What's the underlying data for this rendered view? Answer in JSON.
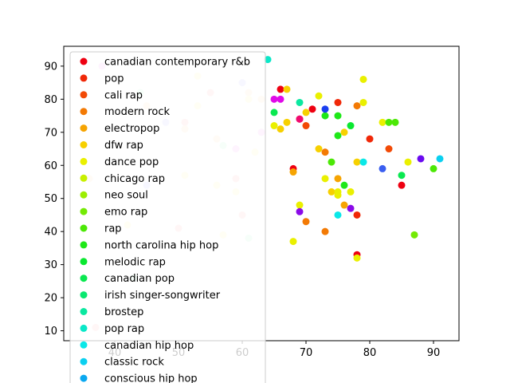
{
  "chart_data": {
    "type": "scatter",
    "title": "",
    "xlabel": "",
    "ylabel": "",
    "xlim": [
      32,
      94
    ],
    "ylim": [
      7,
      96
    ],
    "xticks": [
      40,
      50,
      60,
      70,
      80,
      90
    ],
    "yticks": [
      10,
      20,
      30,
      40,
      50,
      60,
      70,
      80,
      90
    ],
    "grid": false,
    "legend_position": "left, partially covering plot",
    "series": [
      {
        "name": "canadian contemporary r&b",
        "color": "#ee0011",
        "points": [
          [
            66,
            83
          ],
          [
            69,
            74
          ],
          [
            71,
            77
          ],
          [
            85,
            54
          ],
          [
            78,
            33
          ],
          [
            68,
            59
          ]
        ]
      },
      {
        "name": "pop",
        "color": "#f02808",
        "points": [
          [
            80,
            68
          ],
          [
            78,
            45
          ],
          [
            75,
            79
          ]
        ]
      },
      {
        "name": "cali rap",
        "color": "#f24a06",
        "points": [
          [
            83,
            65
          ],
          [
            70,
            72
          ]
        ]
      },
      {
        "name": "modern rock",
        "color": "#f37a04",
        "points": [
          [
            73,
            64
          ],
          [
            78,
            78
          ],
          [
            73,
            40
          ],
          [
            70,
            43
          ]
        ]
      },
      {
        "name": "electropop",
        "color": "#f6a402",
        "points": [
          [
            75,
            56
          ],
          [
            76,
            48
          ],
          [
            68,
            58
          ]
        ]
      },
      {
        "name": "dfw rap",
        "color": "#f7d000",
        "points": [
          [
            67,
            83
          ],
          [
            66,
            71
          ],
          [
            67,
            73
          ],
          [
            72,
            65
          ],
          [
            76,
            70
          ],
          [
            78,
            61
          ],
          [
            74,
            52
          ],
          [
            70,
            76
          ]
        ]
      },
      {
        "name": "dance pop",
        "color": "#eaf000",
        "points": [
          [
            79,
            86
          ],
          [
            72,
            81
          ],
          [
            79,
            79
          ],
          [
            65,
            72
          ],
          [
            82,
            73
          ],
          [
            86,
            61
          ],
          [
            75,
            51
          ],
          [
            75,
            52
          ],
          [
            77,
            52
          ],
          [
            73,
            56
          ],
          [
            69,
            48
          ],
          [
            68,
            37
          ],
          [
            78,
            32
          ]
        ]
      },
      {
        "name": "chicago rap",
        "color": "#c8f000",
        "points": []
      },
      {
        "name": "neo soul",
        "color": "#9cee02",
        "points": []
      },
      {
        "name": "emo rap",
        "color": "#74ea04",
        "points": [
          [
            87,
            39
          ]
        ]
      },
      {
        "name": "rap",
        "color": "#4ce806",
        "points": [
          [
            83,
            73
          ],
          [
            84,
            73
          ],
          [
            90,
            59
          ],
          [
            74,
            61
          ]
        ]
      },
      {
        "name": "north carolina hip hop",
        "color": "#1ee818",
        "points": [
          [
            73,
            75
          ],
          [
            75,
            75
          ],
          [
            75,
            69
          ],
          [
            76,
            54
          ]
        ]
      },
      {
        "name": "melodic rap",
        "color": "#0ae830",
        "points": [
          [
            77,
            72
          ]
        ]
      },
      {
        "name": "canadian pop",
        "color": "#0ae850",
        "points": [
          [
            65,
            76
          ],
          [
            85,
            57
          ]
        ]
      },
      {
        "name": "irish singer-songwriter",
        "color": "#0ae870",
        "points": []
      },
      {
        "name": "brostep",
        "color": "#0ae8a0",
        "points": [
          [
            69,
            79
          ]
        ]
      },
      {
        "name": "pop rap",
        "color": "#0ae8c8",
        "points": [
          [
            64,
            92
          ]
        ]
      },
      {
        "name": "canadian hip hop",
        "color": "#0ae8e8",
        "points": [
          [
            79,
            61
          ],
          [
            75,
            45
          ]
        ]
      },
      {
        "name": "classic rock",
        "color": "#0ad0f0",
        "points": [
          [
            91,
            62
          ]
        ]
      },
      {
        "name": "conscious hip hop",
        "color": "#0aa8f0",
        "points": []
      }
    ],
    "extra_points": [
      {
        "color": "#3a5ef0",
        "points": [
          [
            82,
            59
          ]
        ]
      },
      {
        "color": "#1a3ef0",
        "points": [
          [
            73,
            77
          ]
        ]
      },
      {
        "color": "#6a0af0",
        "points": [
          [
            88,
            62
          ]
        ]
      },
      {
        "color": "#8a0ae8",
        "points": [
          [
            69,
            46
          ],
          [
            77,
            47
          ]
        ]
      },
      {
        "color": "#e00ae8",
        "points": [
          [
            65,
            80
          ],
          [
            66,
            80
          ]
        ]
      },
      {
        "color": "#f00a70",
        "points": [
          [
            69,
            74
          ]
        ]
      }
    ],
    "faded_points": [
      {
        "color": "#f8c8f8",
        "points": [
          [
            38,
            90
          ],
          [
            63,
            70
          ],
          [
            59,
            65
          ]
        ]
      },
      {
        "color": "#ffd0d0",
        "points": [
          [
            55,
            82
          ],
          [
            51,
            73
          ],
          [
            59,
            56
          ],
          [
            60,
            45
          ],
          [
            50,
            41
          ],
          [
            37,
            11
          ]
        ]
      },
      {
        "color": "#ffe8d0",
        "points": [
          [
            45,
            78
          ],
          [
            61,
            82
          ],
          [
            51,
            71
          ],
          [
            63,
            80
          ],
          [
            56,
            68
          ],
          [
            36,
            56
          ]
        ]
      },
      {
        "color": "#fff8c8",
        "points": [
          [
            53,
            87
          ],
          [
            53,
            78
          ],
          [
            61,
            80
          ],
          [
            62,
            64
          ],
          [
            51,
            57
          ],
          [
            56,
            54
          ],
          [
            59,
            52
          ],
          [
            42,
            42
          ],
          [
            57,
            39
          ]
        ]
      },
      {
        "color": "#d8d8ff",
        "points": [
          [
            60,
            85
          ],
          [
            48,
            73
          ],
          [
            45,
            54
          ]
        ]
      },
      {
        "color": "#d0f8e0",
        "points": [
          [
            57,
            66
          ],
          [
            61,
            38
          ],
          [
            44,
            82
          ],
          [
            43,
            26
          ]
        ]
      }
    ]
  }
}
